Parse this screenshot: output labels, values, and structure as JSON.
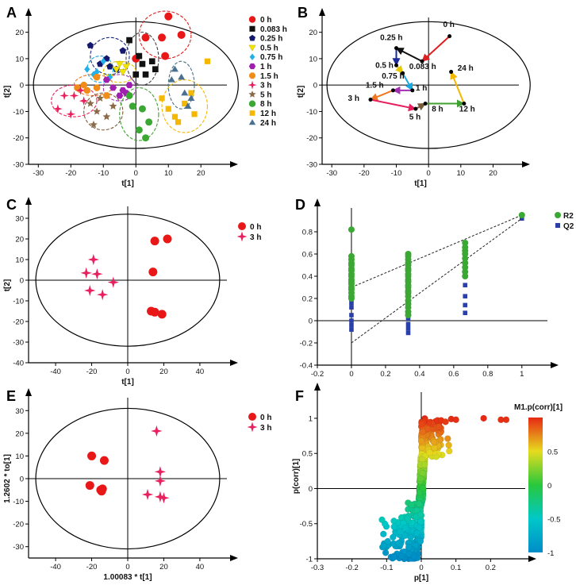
{
  "panels": [
    {
      "label": "A",
      "chart_data": {
        "type": "scatter",
        "xlabel": "t[1]",
        "ylabel": "t[2]",
        "xlim": [
          -33,
          28
        ],
        "ylim": [
          -30,
          25
        ],
        "xticks": [
          -30,
          -20,
          -10,
          0,
          10,
          20
        ],
        "yticks": [
          -30,
          -20,
          -10,
          0,
          10,
          20
        ],
        "ellipse": {
          "cx": 0,
          "cy": 0,
          "rx": 31.5,
          "ry": 24
        },
        "legend": [
          "0 h",
          "0.083 h",
          "0.25 h",
          "0.5 h",
          "0.75 h",
          "1 h",
          "1.5 h",
          "3 h",
          "5 h",
          "8 h",
          "12 h",
          "24 h"
        ],
        "series": [
          {
            "name": "0 h",
            "x": [
              10,
              8,
              14,
              9,
              3,
              0
            ],
            "y": [
              26,
              18,
              19,
              11,
              18,
              10
            ]
          },
          {
            "name": "0.083 h",
            "x": [
              -2,
              1,
              2,
              3,
              0,
              5,
              6
            ],
            "y": [
              17,
              11,
              8,
              4,
              4,
              9,
              6
            ]
          },
          {
            "name": "0.25 h",
            "x": [
              -14,
              -9,
              -11,
              -8,
              -4,
              -6
            ],
            "y": [
              15,
              10,
              8,
              7,
              13,
              6
            ]
          },
          {
            "name": "0.5 h",
            "x": [
              -6,
              -4,
              -3,
              -8,
              -5
            ],
            "y": [
              6,
              5,
              7,
              3,
              8
            ]
          },
          {
            "name": "0.75 h",
            "x": [
              -15,
              -12,
              -10,
              -8,
              -13
            ],
            "y": [
              6,
              5,
              9,
              3,
              4
            ]
          },
          {
            "name": "1 h",
            "x": [
              -9,
              -7,
              -4,
              -3,
              -5,
              -2
            ],
            "y": [
              2,
              -1,
              -2,
              -3,
              -4,
              0
            ]
          },
          {
            "name": "1.5 h",
            "x": [
              -18,
              -15,
              -12,
              -9,
              -16,
              -12
            ],
            "y": [
              -1,
              -2,
              -1,
              -4,
              0,
              3
            ]
          },
          {
            "name": "3 h",
            "x": [
              -24,
              -19,
              -17,
              -22,
              -16,
              -20
            ],
            "y": [
              -9,
              -4,
              -2,
              -4,
              -6,
              -11
            ]
          },
          {
            "name": "5 h",
            "x": [
              -14,
              -12,
              -9,
              -11,
              -7,
              -13
            ],
            "y": [
              -7,
              -10,
              -12,
              -5,
              -8,
              -15
            ]
          },
          {
            "name": "8 h",
            "x": [
              -2,
              2,
              4,
              1,
              3,
              -1
            ],
            "y": [
              -4,
              -9,
              -14,
              -17,
              -20,
              -8
            ]
          },
          {
            "name": "12 h",
            "x": [
              8,
              10,
              12,
              13,
              15,
              17,
              18,
              22
            ],
            "y": [
              -5,
              -9,
              -12,
              -14,
              -7,
              -3,
              -11,
              9
            ]
          },
          {
            "name": "24 h",
            "x": [
              12,
              11,
              15,
              16,
              14,
              17
            ],
            "y": [
              6,
              2,
              -3,
              -8,
              3,
              -5
            ]
          }
        ],
        "ellipses": [
          {
            "cx": 9,
            "cy": 19,
            "rx": 8,
            "ry": 9,
            "c": "#e02020"
          },
          {
            "cx": 2,
            "cy": 10,
            "rx": 5,
            "ry": 10,
            "c": "#444"
          },
          {
            "cx": -8,
            "cy": 11,
            "rx": 6,
            "ry": 7,
            "c": "#1a2a7a"
          },
          {
            "cx": -5,
            "cy": 5,
            "rx": 5,
            "ry": 4,
            "c": "#e8c800"
          },
          {
            "cx": -11,
            "cy": 6,
            "rx": 4,
            "ry": 5,
            "c": "#18a8e0"
          },
          {
            "cx": -5,
            "cy": -1,
            "rx": 5,
            "ry": 5,
            "c": "#a030b0"
          },
          {
            "cx": -13,
            "cy": 0,
            "rx": 6,
            "ry": 4,
            "c": "#f07820"
          },
          {
            "cx": -19,
            "cy": -6,
            "rx": 7,
            "ry": 6,
            "c": "#e82060"
          },
          {
            "cx": -10,
            "cy": -10,
            "rx": 6,
            "ry": 7,
            "c": "#7a5a3a"
          },
          {
            "cx": 1,
            "cy": -11,
            "rx": 6,
            "ry": 10,
            "c": "#40a030"
          },
          {
            "cx": 15,
            "cy": -8,
            "rx": 7,
            "ry": 10,
            "c": "#f5b800"
          },
          {
            "cx": 14,
            "cy": 0,
            "rx": 4,
            "ry": 9,
            "c": "#4a7080"
          }
        ]
      }
    },
    {
      "label": "B",
      "chart_data": {
        "type": "line",
        "xlabel": "t[1]",
        "ylabel": "t[2]",
        "xlim": [
          -33,
          28
        ],
        "ylim": [
          -30,
          25
        ],
        "xticks": [
          -30,
          -20,
          -10,
          0,
          10,
          20
        ],
        "yticks": [
          -30,
          -20,
          -10,
          0,
          10,
          20
        ],
        "ellipse": {
          "cx": 0,
          "cy": 0,
          "rx": 31.5,
          "ry": 24
        },
        "points": [
          {
            "name": "0 h",
            "x": 6.5,
            "y": 18.5,
            "lx": 4.5,
            "ly": 22
          },
          {
            "name": "0.083 h",
            "x": -2,
            "y": 9,
            "lx": -6,
            "ly": 6
          },
          {
            "name": "0.25 h",
            "x": -10,
            "y": 14,
            "lx": -15,
            "ly": 17
          },
          {
            "name": "0.5 h",
            "x": -10,
            "y": 7.5,
            "lx": -16.5,
            "ly": 6.5
          },
          {
            "name": "0.75 h",
            "x": -8,
            "y": 4.5,
            "lx": -14.5,
            "ly": 2.5
          },
          {
            "name": "1 h",
            "x": -5,
            "y": -2,
            "lx": -4,
            "ly": -2
          },
          {
            "name": "1.5 h",
            "x": -11,
            "y": -2,
            "lx": -19.5,
            "ly": -1
          },
          {
            "name": "3 h",
            "x": -18,
            "y": -5.5,
            "lx": -25,
            "ly": -6
          },
          {
            "name": "5 h",
            "x": -4,
            "y": -9,
            "lx": -6,
            "ly": -13
          },
          {
            "name": "8 h",
            "x": -1,
            "y": -7,
            "lx": 1,
            "ly": -10
          },
          {
            "name": "12 h",
            "x": 11,
            "y": -7,
            "lx": 9.5,
            "ly": -10
          },
          {
            "name": "24 h",
            "x": 7,
            "y": 5,
            "lx": 9,
            "ly": 5.5
          }
        ],
        "arrows": [
          {
            "from": "0 h",
            "to": "0.083 h",
            "c": "#e02020"
          },
          {
            "from": "0.083 h",
            "to": "0.25 h",
            "c": "#111"
          },
          {
            "from": "0.25 h",
            "to": "0.5 h",
            "c": "#1a2a9a"
          },
          {
            "from": "0.5 h",
            "to": "0.75 h",
            "c": "#e8c800"
          },
          {
            "from": "0.75 h",
            "to": "1 h",
            "c": "#18a8e0"
          },
          {
            "from": "1 h",
            "to": "1.5 h",
            "c": "#a030b0"
          },
          {
            "from": "1.5 h",
            "to": "3 h",
            "c": "#f07820"
          },
          {
            "from": "3 h",
            "to": "5 h",
            "c": "#e82060"
          },
          {
            "from": "5 h",
            "to": "8 h",
            "c": "#7a5a3a"
          },
          {
            "from": "8 h",
            "to": "12 h",
            "c": "#40a030"
          },
          {
            "from": "12 h",
            "to": "24 h",
            "c": "#f5b800"
          }
        ]
      }
    },
    {
      "label": "C",
      "chart_data": {
        "type": "scatter",
        "xlabel": "t[1]",
        "ylabel": "t[2]",
        "xlim": [
          -55,
          55
        ],
        "ylim": [
          -40,
          35
        ],
        "xticks": [
          -40,
          -20,
          0,
          20,
          40
        ],
        "yticks": [
          -40,
          -30,
          -20,
          -10,
          0,
          10,
          20,
          30
        ],
        "ellipse": {
          "cx": 0,
          "cy": 0,
          "rx": 51,
          "ry": 32
        },
        "legend": [
          "0 h",
          "3 h"
        ],
        "series": [
          {
            "name": "0 h",
            "x": 15,
            "y": []
          },
          {
            "name": "0 h",
            "x": [
              15,
              22,
              14,
              13,
              15,
              19
            ],
            "y": [
              19,
              20,
              4,
              -15,
              -15.5,
              -16.5
            ]
          },
          {
            "name": "3 h",
            "x": [
              -23,
              -19,
              -17,
              -21,
              -14,
              -8
            ],
            "y": [
              3.5,
              10,
              3,
              -5,
              -7,
              -1
            ]
          }
        ]
      }
    },
    {
      "label": "D",
      "chart_data": {
        "type": "scatter",
        "xlim": [
          -0.2,
          1.15
        ],
        "ylim": [
          -0.4,
          1.0
        ],
        "xticks": [
          -0.2,
          0,
          0.2,
          0.4,
          0.6,
          0.8,
          1
        ],
        "xtick_labels": [
          "-0.2",
          "0",
          "0.2",
          "0.4",
          "0.6",
          "0.8",
          "1"
        ],
        "yticks": [
          -0.4,
          -0.2,
          0,
          0.2,
          0.4,
          0.6,
          0.8
        ],
        "ytick_labels": [
          "-0.4",
          "-0.2",
          "0",
          "0.2",
          "0.4",
          "0.6",
          "0.8"
        ],
        "legend": [
          "R2",
          "Q2"
        ],
        "r2": {
          "x0": 0,
          "xs": [
            0.333,
            0.667
          ],
          "final": [
            1,
            0.95
          ],
          "y0": [
            0.82,
            0.58,
            0.55,
            0.52,
            0.5,
            0.47,
            0.45,
            0.42,
            0.4,
            0.37,
            0.35,
            0.33,
            0.3,
            0.28,
            0.25,
            0.22,
            0.2
          ],
          "y1": [
            0.6,
            0.58,
            0.55,
            0.52,
            0.5,
            0.47,
            0.45,
            0.42,
            0.4,
            0.37,
            0.35,
            0.32,
            0.3,
            0.27,
            0.25,
            0.22,
            0.18,
            0.15,
            0.12,
            0.08,
            0.05
          ],
          "y2": [
            0.7,
            0.66,
            0.63,
            0.6,
            0.56,
            0.52,
            0.48,
            0.44,
            0.4
          ]
        },
        "q2": {
          "final": [
            1,
            0.92
          ],
          "y0": [
            0.55,
            0.52,
            0.48,
            0.44,
            0.4,
            0.36,
            0.32,
            0.28,
            0.24,
            0.2,
            0.16,
            0.12,
            0.05,
            0.0,
            -0.04,
            -0.08
          ],
          "y1": [
            0.55,
            0.5,
            0.45,
            0.4,
            0.35,
            0.3,
            0.25,
            0.2,
            0.15,
            0.1,
            0.05,
            0.02,
            -0.03,
            -0.07,
            -0.11
          ],
          "y2": [
            0.6,
            0.55,
            0.5,
            0.45,
            0.4,
            0.32,
            0.22,
            0.14,
            0.07
          ]
        },
        "lines": [
          {
            "x": [
              0,
              1
            ],
            "y": [
              0.3,
              0.95
            ]
          },
          {
            "x": [
              0,
              1
            ],
            "y": [
              -0.2,
              0.92
            ]
          }
        ]
      }
    },
    {
      "label": "E",
      "chart_data": {
        "type": "scatter",
        "xlabel": "1.00083 * t[1]",
        "ylabel": "1.2602 * to[1]",
        "xlim": [
          -55,
          55
        ],
        "ylim": [
          -35,
          35
        ],
        "xticks": [
          -40,
          -20,
          0,
          20,
          40
        ],
        "yticks": [
          -30,
          -20,
          -10,
          0,
          10,
          20,
          30
        ],
        "ellipse": {
          "cx": 0,
          "cy": 0,
          "rx": 51,
          "ry": 31
        },
        "legend": [
          "0 h",
          "3 h"
        ],
        "series": [
          {
            "name": "0 h",
            "x": [
              -20,
              -13,
              -21,
              -15,
              -14,
              -14.5
            ],
            "y": [
              10,
              8,
              -3,
              -5,
              -4.5,
              -5.5
            ]
          },
          {
            "name": "3 h",
            "x": [
              16,
              18,
              18,
              11,
              18,
              20
            ],
            "y": [
              21,
              3,
              -1,
              -7,
              -8,
              -8.5
            ]
          }
        ]
      }
    },
    {
      "label": "F",
      "chart_data": {
        "type": "scatter",
        "xlabel": "p[1]",
        "ylabel": "p(corr)[1]",
        "xlim": [
          -0.3,
          0.3
        ],
        "ylim": [
          -1,
          1.35
        ],
        "xticks": [
          -0.3,
          -0.2,
          -0.1,
          0,
          0.1,
          0.2
        ],
        "xtick_labels": [
          "-0.3",
          "-0.2",
          "-0.1",
          "0",
          "0.1",
          "0.2"
        ],
        "yticks": [
          -1,
          -0.5,
          0,
          0.5,
          1
        ],
        "ytick_labels": [
          "-1",
          "-0.5",
          "0",
          "0.5",
          "1"
        ],
        "colorbar": {
          "title": "M1.p(corr)[1]",
          "ticks": [
            -1,
            -0.5,
            0,
            0.5
          ],
          "tick_labels": [
            "-1",
            "-0.5",
            "0",
            "0.5"
          ]
        }
      }
    }
  ],
  "colors": {
    "red": "#e81818",
    "black": "#111111",
    "navy": "#14186e",
    "yellow": "#f2e400",
    "cyan": "#22b0ea",
    "purple": "#a01eb0",
    "orange": "#f08c18",
    "magenta": "#e8205e",
    "brown": "#8a6a48",
    "green": "#3aa832",
    "gold": "#f5b800",
    "slate": "#4a7090",
    "blue": "#2a40a8"
  }
}
